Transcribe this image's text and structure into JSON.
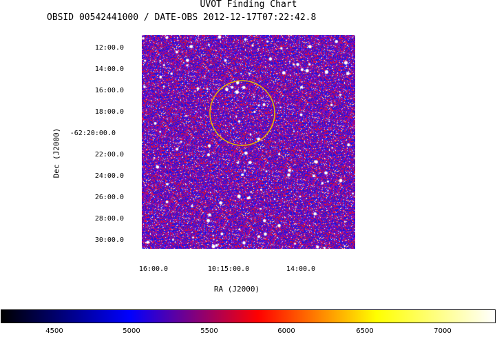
{
  "chart": {
    "title": "UVOT Finding Chart",
    "subtitle": "OBSID 00542441000 / DATE-OBS 2012-12-17T07:22:42.8",
    "xlabel": "RA (J2000)",
    "ylabel": "Dec (J2000)",
    "dec_ticks": [
      "12:00.0",
      "14:00.0",
      "16:00.0",
      "18:00.0",
      "-62:20:00.0",
      "22:00.0",
      "24:00.0",
      "26:00.0",
      "28:00.0",
      "30:00.0"
    ],
    "ra_ticks": [
      "16:00.0",
      "10:15:00.0",
      "14:00.0"
    ],
    "region_color": "#e6b800"
  },
  "colorbar": {
    "ticks": [
      "4500",
      "5000",
      "5500",
      "6000",
      "6500",
      "7000"
    ],
    "colors": [
      "#000000",
      "#0000ff",
      "#ff0000",
      "#ffff00",
      "#ffffff"
    ]
  }
}
